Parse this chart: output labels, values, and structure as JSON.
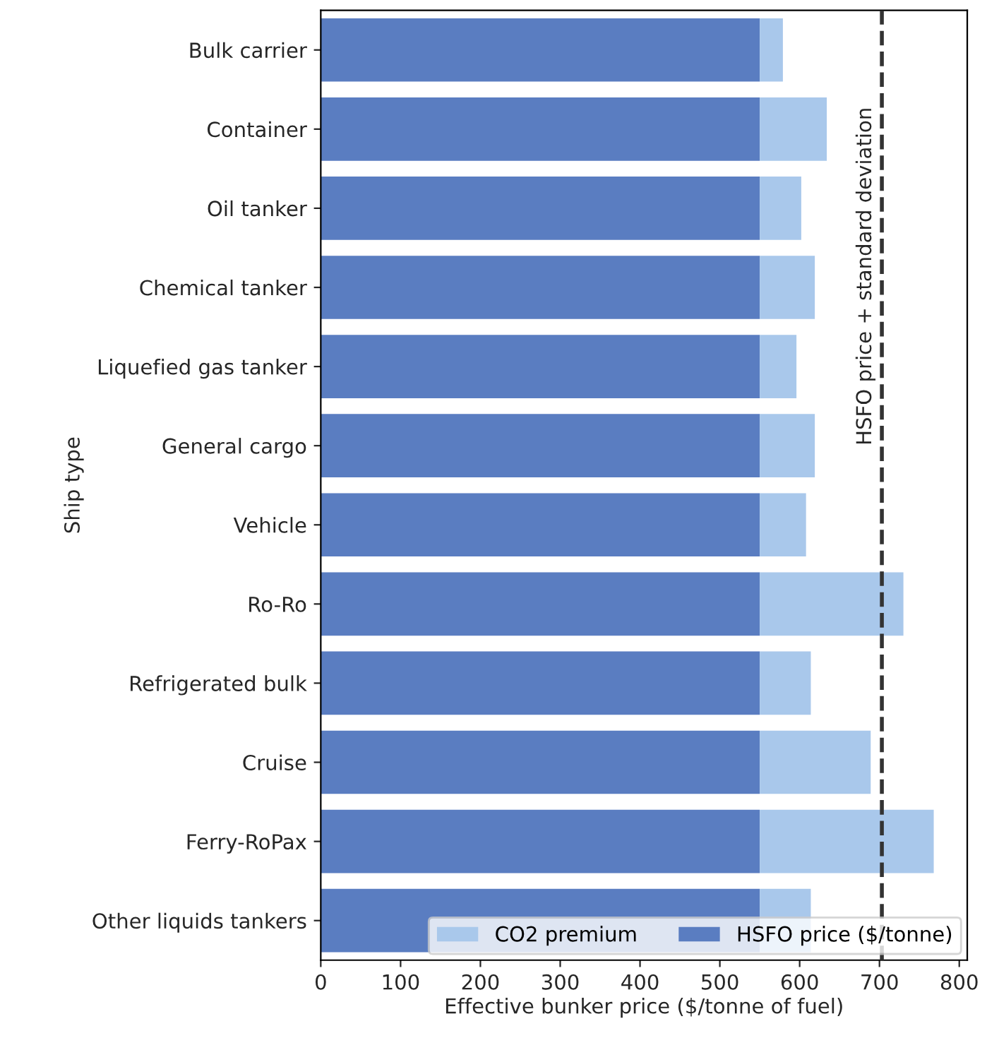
{
  "chart_data": {
    "type": "bar",
    "orientation": "horizontal",
    "stacked": true,
    "xlabel": "Effective bunker price ($/tonne of fuel)",
    "ylabel": "Ship type",
    "categories": [
      "Bulk carrier",
      "Container",
      "Oil tanker",
      "Chemical tanker",
      "Liquefied gas tanker",
      "General cargo",
      "Vehicle",
      "Ro-Ro",
      "Refrigerated bulk",
      "Cruise",
      "Ferry-RoPax",
      "Other liquids tankers"
    ],
    "series": [
      {
        "name": "HSFO price ($/tonne)",
        "color": "#5a7dc1",
        "values": [
          550,
          550,
          550,
          550,
          550,
          550,
          550,
          550,
          550,
          550,
          550,
          550
        ]
      },
      {
        "name": "CO2 premium",
        "color": "#a9c8eb",
        "values": [
          29,
          84,
          52,
          69,
          46,
          69,
          58,
          180,
          64,
          139,
          218,
          64
        ]
      }
    ],
    "xlim": [
      0,
      810
    ],
    "xticks": [
      0,
      100,
      200,
      300,
      400,
      500,
      600,
      700,
      800
    ],
    "ref_lines": [
      {
        "axis": "x",
        "value": 703,
        "label": "HSFO price + standard deviation",
        "color": "#333333",
        "line_style": "dashed"
      }
    ],
    "legend": "bottom right",
    "grid": false
  }
}
